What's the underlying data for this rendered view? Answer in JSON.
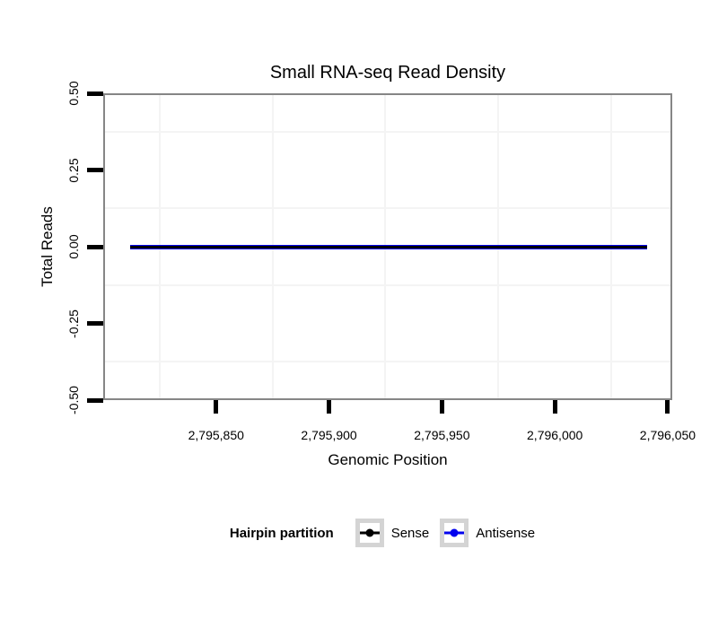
{
  "chart_data": {
    "type": "line",
    "title": "Small RNA-seq Read Density",
    "xlabel": "Genomic Position",
    "ylabel": "Total Reads",
    "xlim": [
      2795800,
      2796052
    ],
    "ylim": [
      -0.5,
      0.5
    ],
    "x_ticks": [
      2795850,
      2795900,
      2795950,
      2796000,
      2796050
    ],
    "x_tick_labels": [
      "2,795,850",
      "2,795,900",
      "2,795,950",
      "2,796,000",
      "2,796,050"
    ],
    "y_ticks": [
      0.5,
      0.25,
      0.0,
      -0.25,
      -0.5
    ],
    "y_tick_labels": [
      "0.50",
      "0.25",
      "0.00",
      "-0.25",
      "-0.50"
    ],
    "x_minor_gridlines": [
      2795825,
      2795875,
      2795925,
      2795975,
      2796025
    ],
    "y_minor_gridlines": [
      0.375,
      0.125,
      -0.125,
      -0.375
    ],
    "grid": "minor-only",
    "legend": {
      "title": "Hairpin partition",
      "position": "bottom",
      "entries": [
        "Sense",
        "Antisense"
      ]
    },
    "series": [
      {
        "name": "Sense",
        "color": "#000000",
        "line_width": 3,
        "x_start": 2795812,
        "x_end": 2796041,
        "value": 0
      },
      {
        "name": "Antisense",
        "color": "#0000ee",
        "line_width": 5,
        "x_start": 2795812,
        "x_end": 2796041,
        "value": 0
      }
    ]
  },
  "colors": {
    "background": "#ffffff",
    "panel_border": "#868686",
    "gridline": "#f4f4f4",
    "tick": "#000000",
    "text": "#000000",
    "legend_key_border": "#d4d4d4"
  }
}
